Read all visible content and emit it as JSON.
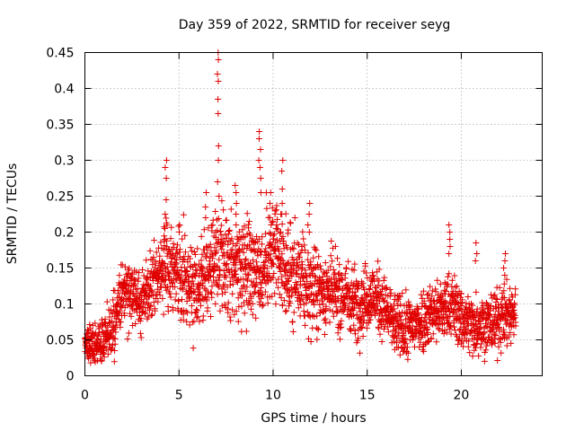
{
  "chart_data": {
    "type": "scatter",
    "title": "Day 359 of 2022, SRMTID for receiver seyg",
    "xlabel": "GPS time / hours",
    "ylabel": "SRMTID / TECUs",
    "xlim": [
      0,
      24.3
    ],
    "ylim": [
      0,
      0.45
    ],
    "xticks": [
      0,
      5,
      10,
      15,
      20
    ],
    "yticks": [
      0,
      0.05,
      0.1,
      0.15,
      0.2,
      0.25,
      0.3,
      0.35,
      0.4,
      0.45
    ],
    "xtick_labels": [
      "0",
      "5",
      "10",
      "15",
      "20"
    ],
    "ytick_labels": [
      "0",
      "0.05",
      "0.1",
      "0.15",
      "0.2",
      "0.25",
      "0.3",
      "0.35",
      "0.4",
      "0.45"
    ],
    "grid": true,
    "marker": "+",
    "marker_color": "#e00000",
    "points_per_hour": 110,
    "x_end": 22.9,
    "trend": [
      {
        "x": 0.0,
        "y": 0.045
      },
      {
        "x": 0.5,
        "y": 0.04
      },
      {
        "x": 1.0,
        "y": 0.05
      },
      {
        "x": 1.5,
        "y": 0.07
      },
      {
        "x": 2.0,
        "y": 0.12
      },
      {
        "x": 2.5,
        "y": 0.11
      },
      {
        "x": 3.0,
        "y": 0.11
      },
      {
        "x": 3.5,
        "y": 0.13
      },
      {
        "x": 4.0,
        "y": 0.15
      },
      {
        "x": 4.5,
        "y": 0.15
      },
      {
        "x": 5.0,
        "y": 0.14
      },
      {
        "x": 5.5,
        "y": 0.13
      },
      {
        "x": 6.0,
        "y": 0.13
      },
      {
        "x": 6.5,
        "y": 0.14
      },
      {
        "x": 7.0,
        "y": 0.16
      },
      {
        "x": 7.5,
        "y": 0.15
      },
      {
        "x": 8.0,
        "y": 0.15
      },
      {
        "x": 8.5,
        "y": 0.16
      },
      {
        "x": 9.0,
        "y": 0.15
      },
      {
        "x": 9.5,
        "y": 0.15
      },
      {
        "x": 10.0,
        "y": 0.17
      },
      {
        "x": 10.5,
        "y": 0.15
      },
      {
        "x": 11.0,
        "y": 0.14
      },
      {
        "x": 11.5,
        "y": 0.13
      },
      {
        "x": 12.0,
        "y": 0.12
      },
      {
        "x": 12.5,
        "y": 0.12
      },
      {
        "x": 13.0,
        "y": 0.12
      },
      {
        "x": 13.5,
        "y": 0.11
      },
      {
        "x": 14.0,
        "y": 0.11
      },
      {
        "x": 14.5,
        "y": 0.1
      },
      {
        "x": 15.0,
        "y": 0.11
      },
      {
        "x": 15.5,
        "y": 0.11
      },
      {
        "x": 16.0,
        "y": 0.09
      },
      {
        "x": 16.5,
        "y": 0.07
      },
      {
        "x": 17.0,
        "y": 0.065
      },
      {
        "x": 17.5,
        "y": 0.07
      },
      {
        "x": 18.0,
        "y": 0.08
      },
      {
        "x": 18.5,
        "y": 0.09
      },
      {
        "x": 19.0,
        "y": 0.09
      },
      {
        "x": 19.5,
        "y": 0.1
      },
      {
        "x": 20.0,
        "y": 0.08
      },
      {
        "x": 20.5,
        "y": 0.07
      },
      {
        "x": 21.0,
        "y": 0.075
      },
      {
        "x": 21.5,
        "y": 0.07
      },
      {
        "x": 22.0,
        "y": 0.08
      },
      {
        "x": 22.5,
        "y": 0.085
      },
      {
        "x": 22.9,
        "y": 0.09
      }
    ],
    "spread": [
      {
        "x": 0.0,
        "s": 0.015
      },
      {
        "x": 2.0,
        "s": 0.025
      },
      {
        "x": 4.0,
        "s": 0.03
      },
      {
        "x": 7.0,
        "s": 0.04
      },
      {
        "x": 10.0,
        "s": 0.04
      },
      {
        "x": 13.0,
        "s": 0.03
      },
      {
        "x": 16.0,
        "s": 0.025
      },
      {
        "x": 20.0,
        "s": 0.025
      },
      {
        "x": 22.9,
        "s": 0.025
      }
    ],
    "spikes": [
      {
        "x": 4.3,
        "values": [
          0.3,
          0.29,
          0.275,
          0.245,
          0.225,
          0.205,
          0.19
        ]
      },
      {
        "x": 7.1,
        "values": [
          0.45,
          0.44,
          0.42,
          0.41,
          0.385,
          0.365,
          0.32,
          0.3,
          0.27,
          0.25
        ]
      },
      {
        "x": 8.0,
        "values": [
          0.265,
          0.255,
          0.24,
          0.225,
          0.21
        ]
      },
      {
        "x": 9.3,
        "values": [
          0.34,
          0.33,
          0.315,
          0.3,
          0.29,
          0.275,
          0.255
        ]
      },
      {
        "x": 9.85,
        "values": [
          0.255,
          0.24,
          0.22,
          0.21
        ]
      },
      {
        "x": 10.5,
        "values": [
          0.3,
          0.285,
          0.26,
          0.24,
          0.225
        ]
      },
      {
        "x": 11.9,
        "values": [
          0.24,
          0.225,
          0.21,
          0.2
        ]
      },
      {
        "x": 6.4,
        "values": [
          0.255,
          0.235,
          0.22
        ]
      },
      {
        "x": 19.4,
        "values": [
          0.21,
          0.2,
          0.19,
          0.18,
          0.17
        ]
      },
      {
        "x": 20.8,
        "values": [
          0.185,
          0.17,
          0.16
        ]
      },
      {
        "x": 22.3,
        "values": [
          0.17,
          0.16,
          0.15,
          0.14
        ]
      }
    ]
  }
}
